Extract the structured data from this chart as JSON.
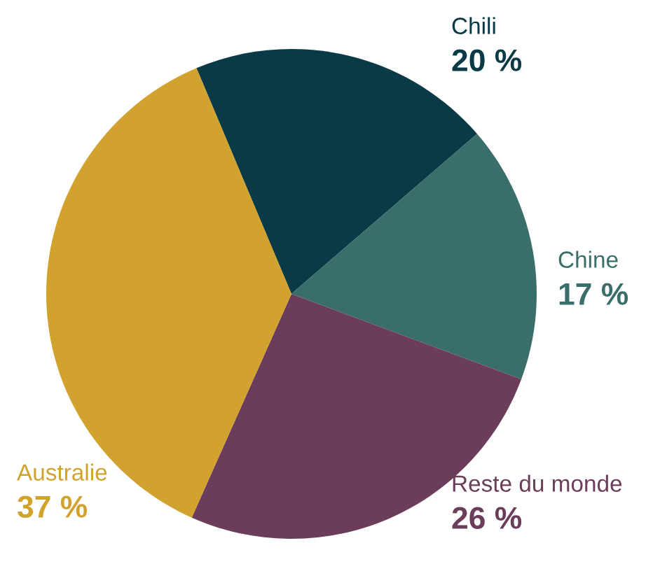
{
  "chart_data": {
    "type": "pie",
    "categories": [
      "Chili",
      "Chine",
      "Reste du monde",
      "Australie"
    ],
    "values": [
      20,
      17,
      26,
      37
    ],
    "value_labels": [
      "20 %",
      "17 %",
      "26 %",
      "37 %"
    ],
    "colors": [
      "#0b3a47",
      "#3a6e6a",
      "#6b3d5a",
      "#d1a22e"
    ]
  }
}
